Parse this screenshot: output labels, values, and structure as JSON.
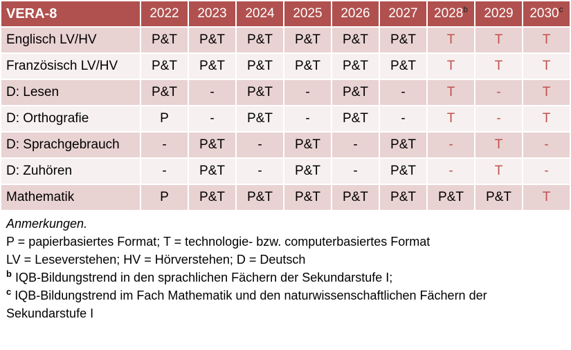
{
  "colors": {
    "header_bg": "#b0514f",
    "band_dark": "#e9d2d2",
    "band_light": "#f7f0f0",
    "accent_red": "#c0504d",
    "sup_dark": "#1a1a1a"
  },
  "table": {
    "title": "VERA-8",
    "columns": [
      {
        "year": "2022",
        "sup": ""
      },
      {
        "year": "2023",
        "sup": ""
      },
      {
        "year": "2024",
        "sup": ""
      },
      {
        "year": "2025",
        "sup": ""
      },
      {
        "year": "2026",
        "sup": ""
      },
      {
        "year": "2027",
        "sup": ""
      },
      {
        "year": "2028",
        "sup": "b"
      },
      {
        "year": "2029",
        "sup": ""
      },
      {
        "year": "2030",
        "sup": "c"
      }
    ],
    "rows": [
      {
        "label": "Englisch LV/HV",
        "cells": [
          {
            "v": "P&T",
            "red": false
          },
          {
            "v": "P&T",
            "red": false
          },
          {
            "v": "P&T",
            "red": false
          },
          {
            "v": "P&T",
            "red": false
          },
          {
            "v": "P&T",
            "red": false
          },
          {
            "v": "P&T",
            "red": false
          },
          {
            "v": "T",
            "red": true
          },
          {
            "v": "T",
            "red": true
          },
          {
            "v": "T",
            "red": true
          }
        ]
      },
      {
        "label": "Französisch LV/HV",
        "cells": [
          {
            "v": "P&T",
            "red": false
          },
          {
            "v": "P&T",
            "red": false
          },
          {
            "v": "P&T",
            "red": false
          },
          {
            "v": "P&T",
            "red": false
          },
          {
            "v": "P&T",
            "red": false
          },
          {
            "v": "P&T",
            "red": false
          },
          {
            "v": "T",
            "red": true
          },
          {
            "v": "T",
            "red": true
          },
          {
            "v": "T",
            "red": true
          }
        ]
      },
      {
        "label": "D: Lesen",
        "cells": [
          {
            "v": "P&T",
            "red": false
          },
          {
            "v": "-",
            "red": false
          },
          {
            "v": "P&T",
            "red": false
          },
          {
            "v": "-",
            "red": false
          },
          {
            "v": "P&T",
            "red": false
          },
          {
            "v": "-",
            "red": false
          },
          {
            "v": "T",
            "red": true
          },
          {
            "v": "-",
            "red": true
          },
          {
            "v": "T",
            "red": true
          }
        ]
      },
      {
        "label": "D: Orthografie",
        "cells": [
          {
            "v": "P",
            "red": false
          },
          {
            "v": "-",
            "red": false
          },
          {
            "v": "P&T",
            "red": false
          },
          {
            "v": "-",
            "red": false
          },
          {
            "v": "P&T",
            "red": false
          },
          {
            "v": "-",
            "red": false
          },
          {
            "v": "T",
            "red": true
          },
          {
            "v": "-",
            "red": true
          },
          {
            "v": "T",
            "red": true
          }
        ]
      },
      {
        "label": "D: Sprachgebrauch",
        "cells": [
          {
            "v": "-",
            "red": false
          },
          {
            "v": "P&T",
            "red": false
          },
          {
            "v": "-",
            "red": false
          },
          {
            "v": "P&T",
            "red": false
          },
          {
            "v": "-",
            "red": false
          },
          {
            "v": "P&T",
            "red": false
          },
          {
            "v": "-",
            "red": true
          },
          {
            "v": "T",
            "red": true
          },
          {
            "v": "-",
            "red": true
          }
        ]
      },
      {
        "label": "D: Zuhören",
        "cells": [
          {
            "v": "-",
            "red": false
          },
          {
            "v": "P&T",
            "red": false
          },
          {
            "v": "-",
            "red": false
          },
          {
            "v": "P&T",
            "red": false
          },
          {
            "v": "-",
            "red": false
          },
          {
            "v": "P&T",
            "red": false
          },
          {
            "v": "-",
            "red": true
          },
          {
            "v": "T",
            "red": true
          },
          {
            "v": "-",
            "red": true
          }
        ]
      },
      {
        "label": "Mathematik",
        "cells": [
          {
            "v": "P",
            "red": false
          },
          {
            "v": "P&T",
            "red": false
          },
          {
            "v": "P&T",
            "red": false
          },
          {
            "v": "P&T",
            "red": false
          },
          {
            "v": "P&T",
            "red": false
          },
          {
            "v": "P&T",
            "red": false
          },
          {
            "v": "P&T",
            "red": false
          },
          {
            "v": "P&T",
            "red": false
          },
          {
            "v": "T",
            "red": true
          }
        ]
      }
    ]
  },
  "notes": {
    "heading": "Anmerkungen.",
    "lines": [
      {
        "sup": "",
        "text": "P = papierbasiertes Format; T = technologie- bzw. computerbasiertes Format"
      },
      {
        "sup": "",
        "text": "LV = Leseverstehen; HV = Hörverstehen; D = Deutsch"
      },
      {
        "sup": "b",
        "text": "IQB-Bildungstrend in den sprachlichen Fächern der Sekundarstufe I;"
      },
      {
        "sup": "c",
        "text": "IQB-Bildungstrend im Fach Mathematik und den naturwissenschaftlichen Fächern der Sekundarstufe I"
      }
    ]
  }
}
